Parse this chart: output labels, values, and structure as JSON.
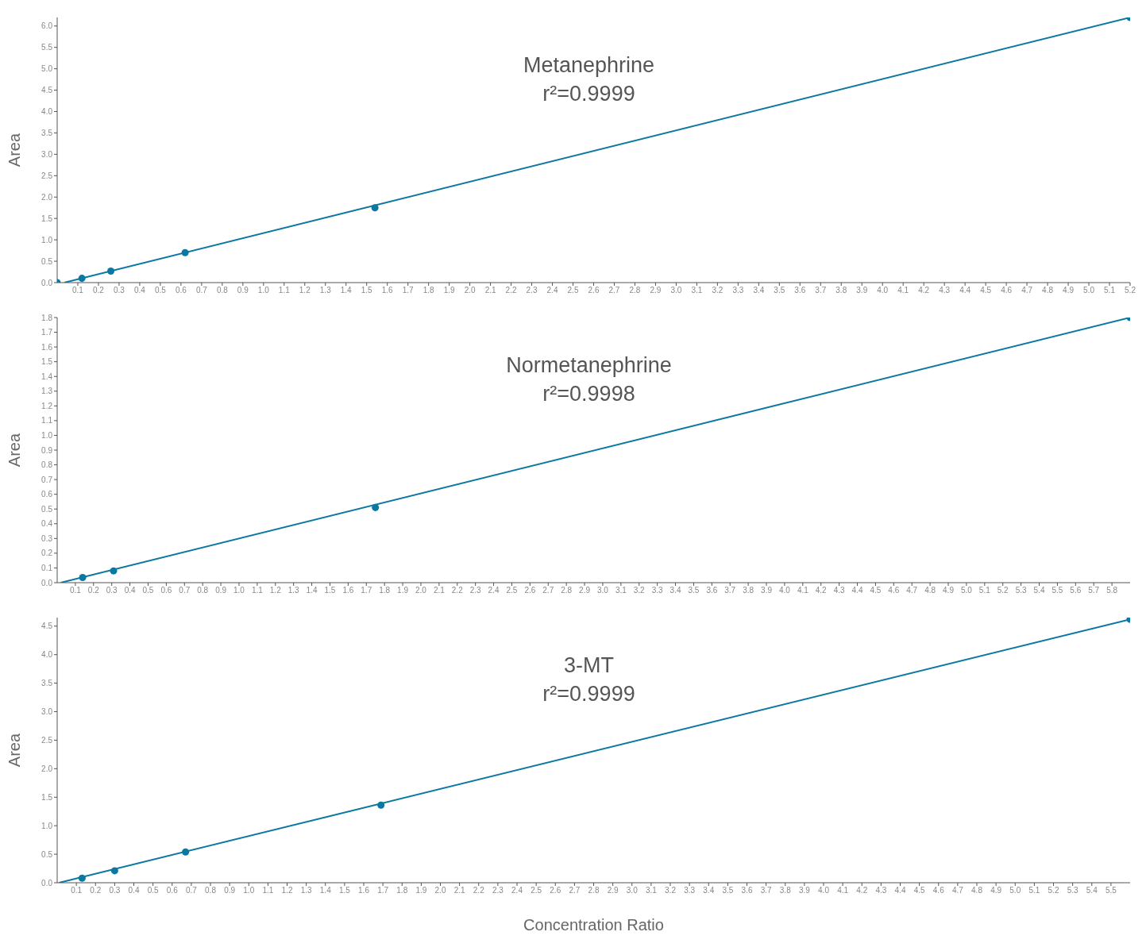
{
  "chart_data": [
    {
      "type": "scatter",
      "title": "Metanephrine",
      "subtitle": "r²=0.9999",
      "ylabel": "Area",
      "xlim": [
        0,
        5.2
      ],
      "ylim": [
        0,
        6.2
      ],
      "xticks": [
        0.1,
        0.2,
        0.3,
        0.4,
        0.5,
        0.6,
        0.7,
        0.8,
        0.9,
        {
          "value": 1,
          "label": "1.0"
        },
        1.1,
        1.2,
        1.3,
        1.4,
        1.5,
        1.6,
        1.7,
        1.8,
        1.9,
        {
          "value": 2,
          "label": "2.0"
        },
        2.1,
        2.2,
        2.3,
        2.4,
        2.5,
        2.6,
        2.7,
        2.8,
        2.9,
        {
          "value": 3,
          "label": "3.0"
        },
        3.1,
        3.2,
        3.3,
        3.4,
        3.5,
        3.6,
        3.7,
        3.8,
        3.9,
        {
          "value": 4,
          "label": "4.0"
        },
        4.1,
        4.2,
        4.3,
        4.4,
        4.5,
        4.6,
        4.7,
        4.8,
        4.9,
        {
          "value": 5,
          "label": "5.0"
        },
        5.1,
        5.2
      ],
      "yticks": [
        {
          "value": 0,
          "label": "0.0"
        },
        0.5,
        {
          "value": 1,
          "label": "1.0"
        },
        1.5,
        {
          "value": 2,
          "label": "2.0"
        },
        2.5,
        {
          "value": 3,
          "label": "3.0"
        },
        3.5,
        {
          "value": 4,
          "label": "4.0"
        },
        4.5,
        {
          "value": 5,
          "label": "5.0"
        },
        5.5,
        {
          "value": 6,
          "label": "6.0"
        }
      ],
      "series": [
        {
          "type": "scatter",
          "color": "#0b78a1",
          "marker": "circle",
          "x": [
            0,
            0.12,
            0.26,
            0.62,
            1.54,
            5.2
          ],
          "values": [
            0,
            0.1,
            0.27,
            0.7,
            1.75,
            6.2
          ]
        },
        {
          "type": "line",
          "color": "#0b78a1",
          "marker": "none",
          "x": [
            0.035,
            5.2
          ],
          "values": [
            0,
            6.2
          ]
        }
      ]
    },
    {
      "type": "scatter",
      "title": "Normetanephrine",
      "subtitle": "r²=0.9998",
      "ylabel": "Area",
      "xlim": [
        0,
        5.9
      ],
      "ylim": [
        0,
        1.8
      ],
      "xticks": [
        0.1,
        0.2,
        0.3,
        0.4,
        0.5,
        0.6,
        0.7,
        0.8,
        0.9,
        {
          "value": 1,
          "label": "1.0"
        },
        1.1,
        1.2,
        1.3,
        1.4,
        1.5,
        1.6,
        1.7,
        1.8,
        1.9,
        {
          "value": 2,
          "label": "2.0"
        },
        2.1,
        2.2,
        2.3,
        2.4,
        2.5,
        2.6,
        2.7,
        2.8,
        2.9,
        {
          "value": 3,
          "label": "3.0"
        },
        3.1,
        3.2,
        3.3,
        3.4,
        3.5,
        3.6,
        3.7,
        3.8,
        3.9,
        {
          "value": 4,
          "label": "4.0"
        },
        4.1,
        4.2,
        4.3,
        4.4,
        4.5,
        4.6,
        4.7,
        4.8,
        4.9,
        {
          "value": 5,
          "label": "5.0"
        },
        5.1,
        5.2,
        5.3,
        5.4,
        5.5,
        5.6,
        5.7,
        5.8
      ],
      "yticks": [
        {
          "value": 0,
          "label": "0.0"
        },
        0.1,
        0.2,
        0.3,
        0.4,
        0.5,
        0.6,
        0.7,
        0.8,
        0.9,
        {
          "value": 1,
          "label": "1.0"
        },
        1.1,
        1.2,
        1.3,
        1.4,
        1.5,
        1.6,
        1.7,
        1.8
      ],
      "series": [
        {
          "type": "scatter",
          "color": "#0b78a1",
          "marker": "circle",
          "x": [
            0.14,
            0.31,
            1.75,
            5.9
          ],
          "values": [
            0.035,
            0.08,
            0.51,
            1.8
          ]
        },
        {
          "type": "line",
          "color": "#0b78a1",
          "marker": "none",
          "x": [
            0.02,
            5.9
          ],
          "values": [
            0,
            1.8
          ]
        }
      ]
    },
    {
      "type": "scatter",
      "title": "3-MT",
      "subtitle": "r²=0.9999",
      "ylabel": "Area",
      "xlabel": "Concentration Ratio",
      "xlim": [
        0,
        5.6
      ],
      "ylim": [
        0,
        4.65
      ],
      "xticks": [
        0.1,
        0.2,
        0.3,
        0.4,
        0.5,
        0.6,
        0.7,
        0.8,
        0.9,
        {
          "value": 1,
          "label": "1.0"
        },
        1.1,
        1.2,
        1.3,
        1.4,
        1.5,
        1.6,
        1.7,
        1.8,
        1.9,
        {
          "value": 2,
          "label": "2.0"
        },
        2.1,
        2.2,
        2.3,
        2.4,
        2.5,
        2.6,
        2.7,
        2.8,
        2.9,
        {
          "value": 3,
          "label": "3.0"
        },
        3.1,
        3.2,
        3.3,
        3.4,
        3.5,
        3.6,
        3.7,
        3.8,
        3.9,
        {
          "value": 4,
          "label": "4.0"
        },
        4.1,
        4.2,
        4.3,
        4.4,
        4.5,
        4.6,
        4.7,
        4.8,
        4.9,
        {
          "value": 5,
          "label": "5.0"
        },
        5.1,
        5.2,
        5.3,
        5.4,
        5.5
      ],
      "yticks": [
        {
          "value": 0,
          "label": "0.0"
        },
        0.5,
        {
          "value": 1,
          "label": "1.0"
        },
        1.5,
        {
          "value": 2,
          "label": "2.0"
        },
        2.5,
        {
          "value": 3,
          "label": "3.0"
        },
        3.5,
        {
          "value": 4,
          "label": "4.0"
        },
        4.5
      ],
      "series": [
        {
          "type": "scatter",
          "color": "#0b78a1",
          "marker": "circle",
          "x": [
            0.13,
            0.3,
            0.67,
            1.69,
            5.6
          ],
          "values": [
            0.08,
            0.21,
            0.54,
            1.36,
            4.62
          ]
        },
        {
          "type": "line",
          "color": "#0b78a1",
          "marker": "none",
          "x": [
            0.01,
            5.6
          ],
          "values": [
            0,
            4.62
          ]
        }
      ]
    }
  ]
}
